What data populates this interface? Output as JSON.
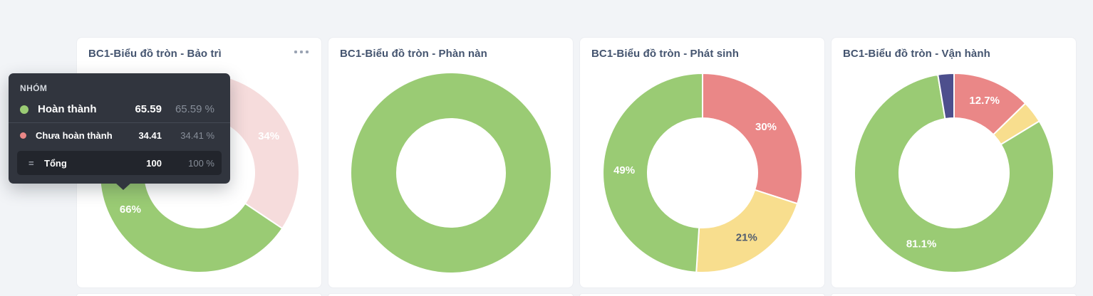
{
  "palette": {
    "green": "#9ACB74",
    "red": "#EA8787",
    "yellow": "#F8DE8E",
    "navy": "#4D4F8D",
    "faded_pink": "#F6DCDC",
    "title_text": "#44546F",
    "page_bg": "#F2F4F7",
    "tooltip_bg": "#31353E",
    "tooltip_total_bg": "#22252C",
    "tooltip_muted": "#878E99"
  },
  "tooltip": {
    "header": "NHÓM",
    "rows": [
      {
        "label": "Hoàn thành",
        "value": "65.59",
        "percent": "65.59 %",
        "dot_color": "#9ACB74"
      },
      {
        "label": "Chưa hoàn thành",
        "value": "34.41",
        "percent": "34.41 %",
        "dot_color": "#EA8787"
      }
    ],
    "total": {
      "symbol": "=",
      "label": "Tổng",
      "value": "100",
      "percent": "100 %"
    }
  },
  "cards": [
    {
      "title": "BC1-Biểu đồ tròn - Bảo trì",
      "menu_icon": "more-horizontal-icon"
    },
    {
      "title": "BC1-Biểu đồ tròn - Phàn nàn"
    },
    {
      "title": "BC1-Biểu đồ tròn - Phát sinh"
    },
    {
      "title": "BC1-Biểu đồ tròn - Vận hành"
    }
  ],
  "chart_data": [
    {
      "type": "pie",
      "title": "BC1-Biểu đồ tròn - Bảo trì",
      "donut": true,
      "group_field": "NHÓM",
      "slices": [
        {
          "name": "Chưa hoàn thành",
          "value": 34.41,
          "display_label": "34%",
          "color": "#F6DCDC",
          "label_color": "#FFFFFF",
          "state": "dimmed"
        },
        {
          "name": "Hoàn thành",
          "value": 65.59,
          "display_label": "66%",
          "color": "#9ACB74",
          "label_color": "#FFFFFF",
          "state": "hovered"
        }
      ]
    },
    {
      "type": "pie",
      "title": "BC1-Biểu đồ tròn - Phàn nàn",
      "donut": true,
      "slices": [
        {
          "value": 100,
          "display_label": null,
          "color": "#9ACB74"
        }
      ]
    },
    {
      "type": "pie",
      "title": "BC1-Biểu đồ tròn - Phát sinh",
      "donut": true,
      "slices": [
        {
          "value": 30,
          "display_label": "30%",
          "color": "#EA8787",
          "label_color": "#FFFFFF"
        },
        {
          "value": 21,
          "display_label": "21%",
          "color": "#F8DE8E",
          "label_color": "#515D70"
        },
        {
          "value": 49,
          "display_label": "49%",
          "color": "#9ACB74",
          "label_color": "#FFFFFF"
        }
      ]
    },
    {
      "type": "pie",
      "title": "BC1-Biểu đồ tròn - Vận hành",
      "donut": true,
      "slices": [
        {
          "value": 12.7,
          "display_label": "12.7%",
          "color": "#EA8787",
          "label_color": "#FFFFFF"
        },
        {
          "value": 3.6,
          "display_label": null,
          "color": "#F8DE8E"
        },
        {
          "value": 81.1,
          "display_label": "81.1%",
          "color": "#9ACB74",
          "label_color": "#FFFFFF"
        },
        {
          "value": 2.6,
          "display_label": null,
          "color": "#4D4F8D"
        }
      ]
    }
  ]
}
